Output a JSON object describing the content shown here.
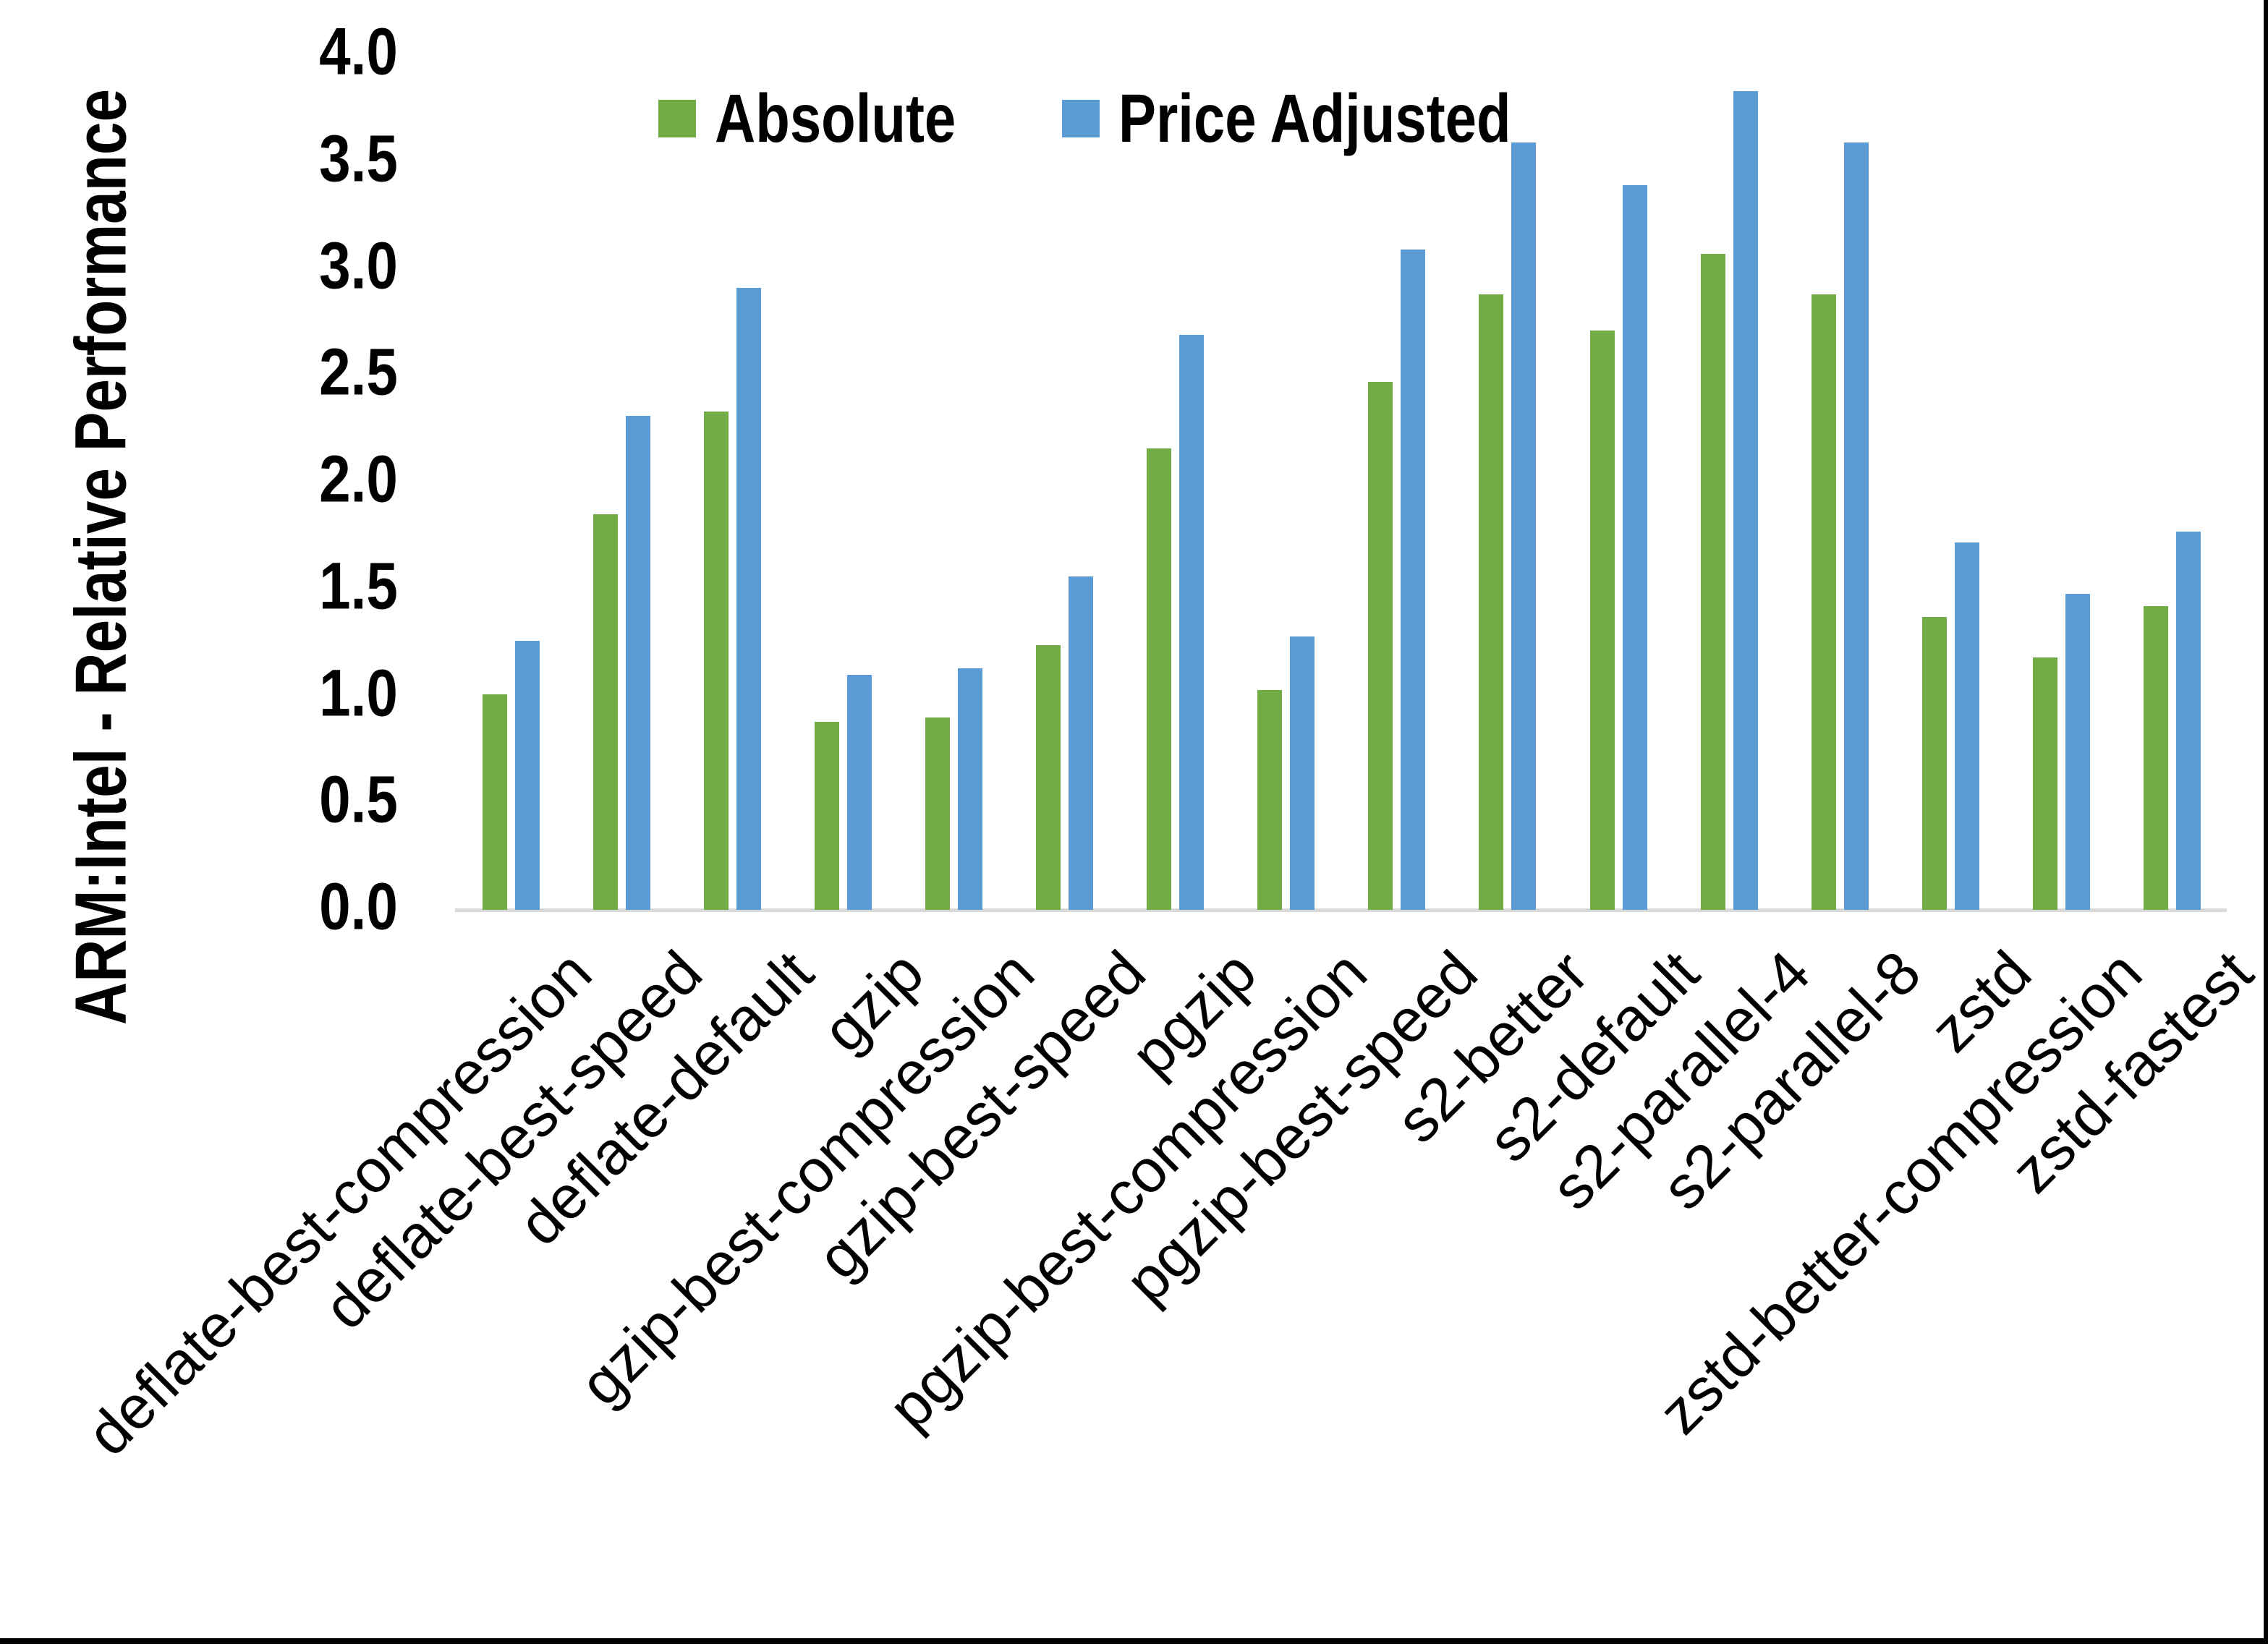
{
  "chart_data": {
    "type": "bar",
    "title": "",
    "ylabel": "ARM:Intel - Relative Performance",
    "xlabel": "",
    "ylim": [
      0.0,
      4.0
    ],
    "ytick_step": 0.5,
    "ytick_format_decimals": 1,
    "grid": false,
    "legend_position": "top-center",
    "categories": [
      "deflate-best-compression",
      "deflate-best-speed",
      "deflate-default",
      "gzip",
      "gzip-best-compression",
      "gzip-best-speed",
      "pgzip",
      "pgzip-best-compression",
      "pgzip-best-speed",
      "s2-better",
      "s2-default",
      "s2-parallel-4",
      "s2-parallel-8",
      "zstd",
      "zstd-better-compression",
      "zstd-fastest"
    ],
    "series": [
      {
        "name": "Absolute",
        "color": "#70AD47",
        "values": [
          1.01,
          1.85,
          2.33,
          0.88,
          0.9,
          1.24,
          2.16,
          1.03,
          2.47,
          2.88,
          2.71,
          3.07,
          2.88,
          1.37,
          1.18,
          1.42
        ]
      },
      {
        "name": "Price Adjusted",
        "color": "#5B9BD5",
        "values": [
          1.26,
          2.31,
          2.91,
          1.1,
          1.13,
          1.56,
          2.69,
          1.28,
          3.09,
          3.59,
          3.39,
          3.83,
          3.59,
          1.72,
          1.48,
          1.77
        ]
      }
    ],
    "colors": {
      "axis_line": "#D9D9D9",
      "text": "#000000",
      "background": "#FFFFFF",
      "frame_border": "#000000"
    }
  }
}
